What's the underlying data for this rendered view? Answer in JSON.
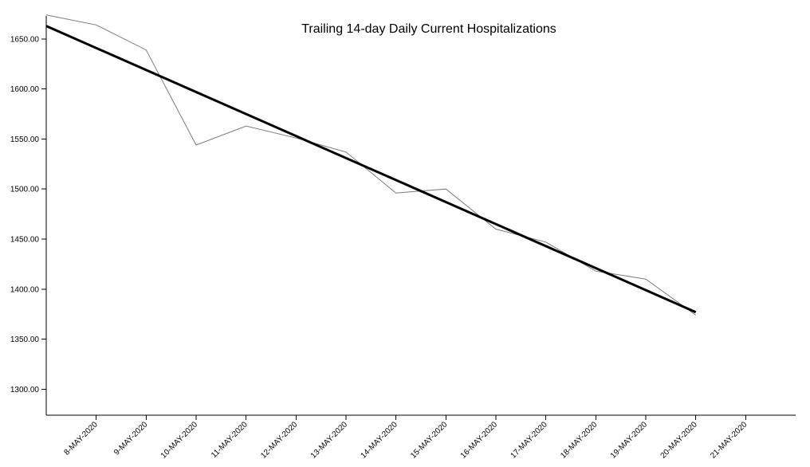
{
  "chart_data": {
    "type": "line",
    "title": "Trailing 14-day Daily Current Hospitalizations",
    "xlabel": "",
    "ylabel": "",
    "x_ticks": [
      "8-MAY-2020",
      "9-MAY-2020",
      "10-MAY-2020",
      "11-MAY-2020",
      "12-MAY-2020",
      "13-MAY-2020",
      "14-MAY-2020",
      "15-MAY-2020",
      "16-MAY-2020",
      "17-MAY-2020",
      "18-MAY-2020",
      "19-MAY-2020",
      "20-MAY-2020",
      "21-MAY-2020"
    ],
    "y_ticks": [
      "1300.00",
      "1350.00",
      "1400.00",
      "1450.00",
      "1500.00",
      "1550.00",
      "1600.00",
      "1650.00"
    ],
    "ylim": [
      1274,
      1673
    ],
    "xlim": [
      "7-MAY-2020",
      "22-MAY-2020"
    ],
    "grid": false,
    "legend": "none",
    "series": [
      {
        "style": "thin-gray",
        "color": "#7a7a7a",
        "x": [
          "7-MAY-2020",
          "8-MAY-2020",
          "9-MAY-2020",
          "10-MAY-2020",
          "11-MAY-2020",
          "12-MAY-2020",
          "13-MAY-2020",
          "14-MAY-2020",
          "15-MAY-2020",
          "16-MAY-2020",
          "17-MAY-2020",
          "18-MAY-2020",
          "19-MAY-2020",
          "20-MAY-2020"
        ],
        "values": [
          1674,
          1664,
          1639,
          1544,
          1563,
          1551,
          1537,
          1496,
          1500,
          1460,
          1447,
          1418,
          1410,
          1374
        ]
      },
      {
        "style": "thick-black",
        "color": "#000000",
        "x": [
          "7-MAY-2020",
          "20-MAY-2020"
        ],
        "values": [
          1663,
          1377
        ]
      }
    ]
  }
}
